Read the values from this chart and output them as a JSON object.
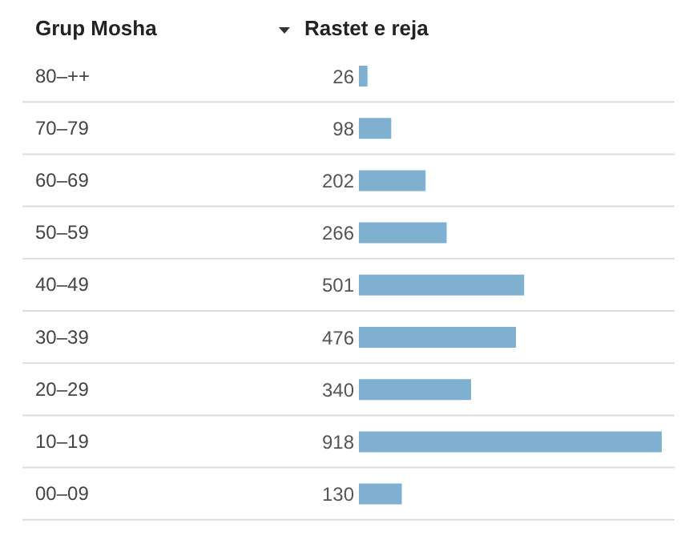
{
  "chart_data": {
    "type": "bar",
    "orientation": "horizontal",
    "ylabel": "Grup Mosha",
    "xlabel": "Rastet e reja",
    "categories": [
      "80–++",
      "70–79",
      "60–69",
      "50–59",
      "40–49",
      "30–39",
      "20–29",
      "10–19",
      "00–09"
    ],
    "values": [
      26,
      98,
      202,
      266,
      501,
      476,
      340,
      918,
      130
    ],
    "color": "#7fb0d0",
    "data_labels": true,
    "grid": true
  }
}
